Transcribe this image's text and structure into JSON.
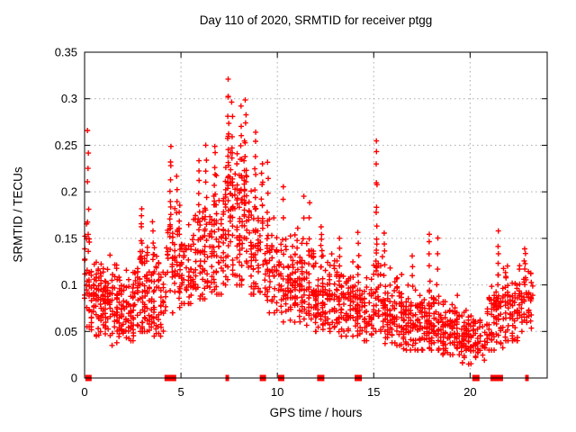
{
  "chart_data": {
    "type": "scatter",
    "title": "Day 110 of 2020, SRMTID for receiver ptgg",
    "xlabel": "GPS time / hours",
    "ylabel": "SRMTID / TECUs",
    "xlim": [
      0,
      24
    ],
    "ylim": [
      0,
      0.35
    ],
    "xticks": [
      {
        "v": 0,
        "label": "0"
      },
      {
        "v": 5,
        "label": "5"
      },
      {
        "v": 10,
        "label": "10"
      },
      {
        "v": 15,
        "label": "15"
      },
      {
        "v": 20,
        "label": "20"
      }
    ],
    "yticks": [
      {
        "v": 0,
        "label": "0"
      },
      {
        "v": 0.05,
        "label": "0.05"
      },
      {
        "v": 0.1,
        "label": "0.1"
      },
      {
        "v": 0.15,
        "label": "0.15"
      },
      {
        "v": 0.2,
        "label": "0.2"
      },
      {
        "v": 0.25,
        "label": "0.25"
      },
      {
        "v": 0.3,
        "label": "0.3"
      },
      {
        "v": 0.35,
        "label": "0.35"
      }
    ],
    "grid": {
      "on": true,
      "color": "#a8a8a8",
      "style": "dotted"
    },
    "marker": {
      "shape": "plus",
      "color": "#ff0000",
      "size": 7
    },
    "border_color": "#000000",
    "scatter_profile": {
      "seed": 20110,
      "time_quantum": 0.12,
      "bands_comment": "each band = [t_start_hr, t_end_hr, n_points, mean_TECU, sd_TECU, min_TECU, max_TECU] estimated from pixels",
      "bands": [
        [
          0.0,
          0.35,
          32,
          0.105,
          0.03,
          0.055,
          0.2
        ],
        [
          0.35,
          1.0,
          70,
          0.085,
          0.02,
          0.045,
          0.14
        ],
        [
          1.0,
          2.0,
          115,
          0.08,
          0.022,
          0.035,
          0.135
        ],
        [
          2.0,
          2.6,
          55,
          0.075,
          0.02,
          0.04,
          0.125
        ],
        [
          2.6,
          3.3,
          65,
          0.09,
          0.028,
          0.05,
          0.155
        ],
        [
          3.3,
          4.25,
          75,
          0.08,
          0.025,
          0.045,
          0.14
        ],
        [
          4.25,
          4.95,
          55,
          0.12,
          0.03,
          0.07,
          0.2
        ],
        [
          4.95,
          5.6,
          50,
          0.115,
          0.025,
          0.08,
          0.185
        ],
        [
          5.6,
          6.5,
          70,
          0.125,
          0.03,
          0.085,
          0.21
        ],
        [
          6.5,
          7.2,
          60,
          0.14,
          0.032,
          0.09,
          0.225
        ],
        [
          7.2,
          7.9,
          70,
          0.17,
          0.04,
          0.1,
          0.27
        ],
        [
          7.9,
          8.55,
          70,
          0.165,
          0.04,
          0.1,
          0.26
        ],
        [
          8.55,
          9.35,
          60,
          0.14,
          0.032,
          0.09,
          0.22
        ],
        [
          9.35,
          10.1,
          60,
          0.12,
          0.03,
          0.07,
          0.19
        ],
        [
          10.1,
          11.1,
          85,
          0.105,
          0.025,
          0.06,
          0.175
        ],
        [
          11.1,
          12.1,
          90,
          0.095,
          0.025,
          0.05,
          0.16
        ],
        [
          12.1,
          13.1,
          90,
          0.085,
          0.022,
          0.05,
          0.15
        ],
        [
          13.1,
          14.1,
          85,
          0.08,
          0.02,
          0.045,
          0.135
        ],
        [
          14.1,
          15.0,
          75,
          0.075,
          0.02,
          0.04,
          0.13
        ],
        [
          15.0,
          15.45,
          30,
          0.095,
          0.028,
          0.05,
          0.155
        ],
        [
          15.45,
          16.5,
          95,
          0.07,
          0.02,
          0.035,
          0.125
        ],
        [
          16.5,
          17.5,
          95,
          0.06,
          0.018,
          0.03,
          0.11
        ],
        [
          17.5,
          18.5,
          90,
          0.058,
          0.018,
          0.03,
          0.105
        ],
        [
          18.5,
          19.6,
          95,
          0.05,
          0.015,
          0.025,
          0.09
        ],
        [
          19.6,
          20.9,
          105,
          0.042,
          0.014,
          0.015,
          0.08
        ],
        [
          20.9,
          21.7,
          75,
          0.065,
          0.02,
          0.03,
          0.12
        ],
        [
          21.7,
          22.5,
          70,
          0.07,
          0.02,
          0.04,
          0.125
        ],
        [
          22.5,
          23.25,
          55,
          0.085,
          0.022,
          0.05,
          0.135
        ]
      ],
      "spikes_comment": "tall narrow columns = [t_hr, n_points, y_low_TECU, y_high_TECU]",
      "spikes": [
        [
          0.18,
          8,
          0.13,
          0.262
        ],
        [
          2.95,
          8,
          0.125,
          0.185
        ],
        [
          3.55,
          6,
          0.115,
          0.165
        ],
        [
          4.45,
          10,
          0.15,
          0.247
        ],
        [
          4.8,
          5,
          0.16,
          0.22
        ],
        [
          5.95,
          8,
          0.155,
          0.23
        ],
        [
          6.3,
          8,
          0.15,
          0.252
        ],
        [
          6.75,
          8,
          0.17,
          0.25
        ],
        [
          7.45,
          12,
          0.2,
          0.318
        ],
        [
          7.65,
          8,
          0.19,
          0.295
        ],
        [
          8.1,
          8,
          0.19,
          0.288
        ],
        [
          8.35,
          8,
          0.19,
          0.3
        ],
        [
          8.85,
          8,
          0.18,
          0.265
        ],
        [
          9.2,
          6,
          0.17,
          0.232
        ],
        [
          9.5,
          6,
          0.15,
          0.23
        ],
        [
          10.3,
          5,
          0.13,
          0.21
        ],
        [
          11.35,
          3,
          0.15,
          0.198
        ],
        [
          11.65,
          5,
          0.12,
          0.185
        ],
        [
          12.3,
          6,
          0.12,
          0.165
        ],
        [
          13.25,
          5,
          0.11,
          0.15
        ],
        [
          14.2,
          6,
          0.1,
          0.155
        ],
        [
          15.15,
          14,
          0.1,
          0.248
        ],
        [
          15.55,
          5,
          0.11,
          0.158
        ],
        [
          17.0,
          4,
          0.1,
          0.13
        ],
        [
          17.9,
          6,
          0.095,
          0.155
        ],
        [
          18.3,
          4,
          0.1,
          0.148
        ],
        [
          21.45,
          6,
          0.1,
          0.155
        ],
        [
          22.85,
          6,
          0.1,
          0.14
        ]
      ],
      "baseline_markers_comment": "red filled squares sitting on the y=0 axis line; t = hours, w = px width",
      "baseline_markers": [
        {
          "t": 0.2,
          "w": 7
        },
        {
          "t": 4.45,
          "w": 13
        },
        {
          "t": 7.4,
          "w": 4
        },
        {
          "t": 9.25,
          "w": 7
        },
        {
          "t": 10.2,
          "w": 7
        },
        {
          "t": 12.25,
          "w": 8
        },
        {
          "t": 14.2,
          "w": 8
        },
        {
          "t": 20.3,
          "w": 8
        },
        {
          "t": 21.38,
          "w": 14
        },
        {
          "t": 22.95,
          "w": 4
        }
      ]
    }
  }
}
